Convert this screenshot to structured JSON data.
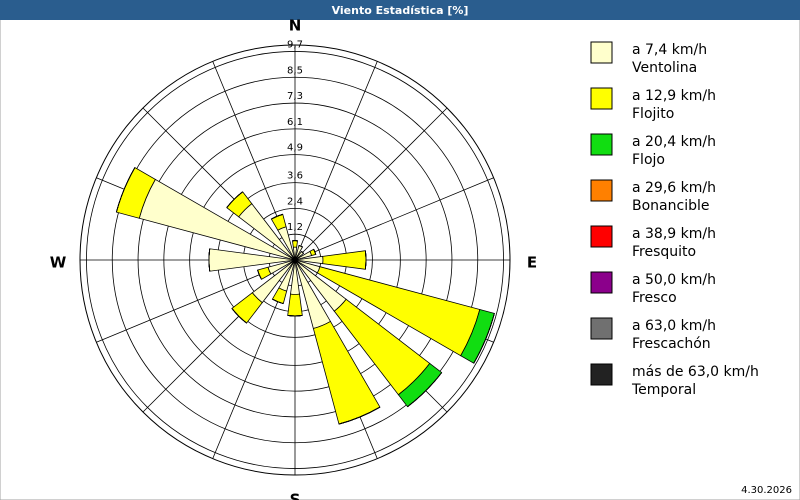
{
  "chart_data": {
    "type": "windrose",
    "title": "Viento Estadística [%]",
    "date": "4.30.2026",
    "categories": [
      "N",
      null,
      null,
      null,
      "E",
      null,
      null,
      null,
      "S",
      null,
      null,
      null,
      "W",
      null,
      null,
      null
    ],
    "rlim": [
      0,
      10
    ],
    "rticks": [
      {
        "value": 1.2,
        "label": "1,2"
      },
      {
        "value": 2.4,
        "label": "2,4"
      },
      {
        "value": 3.6,
        "label": "3,6"
      },
      {
        "value": 4.9,
        "label": "4,9"
      },
      {
        "value": 6.1,
        "label": "6,1"
      },
      {
        "value": 7.3,
        "label": "7,3"
      },
      {
        "value": 8.5,
        "label": "8,5"
      },
      {
        "value": 9.7,
        "label": "9,7"
      }
    ],
    "grid": true,
    "series": [
      {
        "name": "a 7,4 km/h",
        "description": "Ventolina",
        "color": "#ffffcc",
        "values": [
          0.6,
          0.7,
          0.5,
          0.8,
          1.3,
          1.2,
          3.0,
          3.3,
          1.6,
          1.5,
          2.5,
          1.3,
          4.0,
          7.5,
          3.3,
          1.6
        ]
      },
      {
        "name": "a 12,9 km/h",
        "description": "Flojito",
        "color": "#ffff00",
        "values": [
          0.3,
          0,
          0,
          0.2,
          2.0,
          7.7,
          4.9,
          4.6,
          1.0,
          0.6,
          1.2,
          0.5,
          0,
          1.1,
          0.7,
          0.6
        ]
      },
      {
        "name": "a 20,4 km/h",
        "description": "Flojo",
        "color": "#11dd11",
        "values": [
          0,
          0,
          0,
          0,
          0,
          0.7,
          0.7,
          0,
          0,
          0,
          0,
          0,
          0,
          0,
          0,
          0
        ]
      },
      {
        "name": "a 29,6 km/h",
        "description": "Bonancible",
        "color": "#ff8000",
        "values": [
          0,
          0,
          0,
          0,
          0,
          0,
          0,
          0,
          0,
          0,
          0,
          0,
          0,
          0,
          0,
          0
        ]
      },
      {
        "name": "a 38,9 km/h",
        "description": "Fresquito",
        "color": "#ff0000",
        "values": [
          0,
          0,
          0,
          0,
          0,
          0,
          0,
          0,
          0,
          0,
          0,
          0,
          0,
          0,
          0,
          0
        ]
      },
      {
        "name": "a 50,0 km/h",
        "description": "Fresco",
        "color": "#8b008b",
        "values": [
          0,
          0,
          0,
          0,
          0,
          0,
          0,
          0,
          0,
          0,
          0,
          0,
          0,
          0,
          0,
          0
        ]
      },
      {
        "name": "a 63,0 km/h",
        "description": "Frescachón",
        "color": "#707070",
        "values": [
          0,
          0,
          0,
          0,
          0,
          0,
          0,
          0,
          0,
          0,
          0,
          0,
          0,
          0,
          0,
          0
        ]
      },
      {
        "name": "más de 63,0 km/h",
        "description": "Temporal",
        "color": "#222222",
        "values": [
          0,
          0,
          0,
          0,
          0,
          0,
          0,
          0,
          0,
          0,
          0,
          0,
          0,
          0,
          0,
          0
        ]
      }
    ]
  }
}
